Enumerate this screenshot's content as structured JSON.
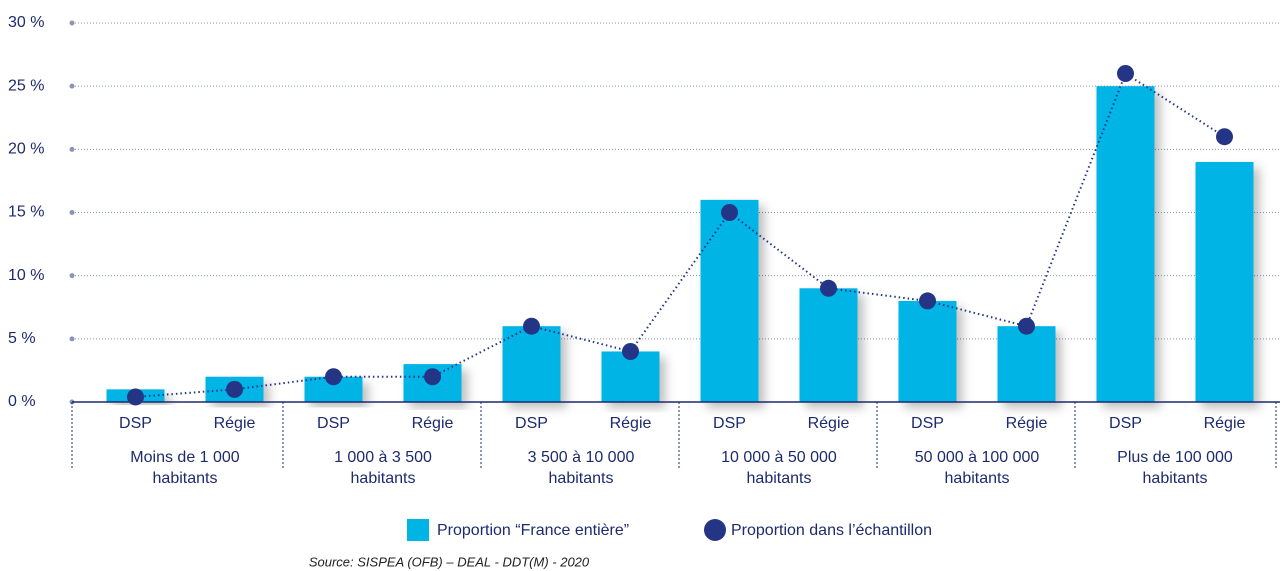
{
  "chart_data": {
    "type": "bar_dot",
    "categories": [
      "DSP",
      "Régie",
      "DSP",
      "Régie",
      "DSP",
      "Régie",
      "DSP",
      "Régie",
      "DSP",
      "Régie",
      "DSP",
      "Régie"
    ],
    "groups": [
      [
        "Moins de 1 000",
        "habitants"
      ],
      [
        "1 000 à 3 500",
        "habitants"
      ],
      [
        "3 500 à 10 000",
        "habitants"
      ],
      [
        "10 000 à 50 000",
        "habitants"
      ],
      [
        "50 000 à 100 000",
        "habitants"
      ],
      [
        "Plus de 100 000",
        "habitants"
      ]
    ],
    "series": [
      {
        "name": "Proportion “France entière”",
        "color": "#00b4e6",
        "values": [
          1,
          2,
          2,
          3,
          6,
          4,
          16,
          9,
          8,
          6,
          25,
          19
        ]
      },
      {
        "name": "Proportion dans l’échantillon",
        "color": "#253586",
        "values": [
          0.4,
          1,
          2,
          2,
          6,
          4,
          15,
          9,
          8,
          6,
          26,
          21
        ]
      }
    ],
    "ylim": [
      0,
      30
    ],
    "yticks": [
      {
        "value": 0,
        "label": "0 %"
      },
      {
        "value": 5,
        "label": "5 %"
      },
      {
        "value": 10,
        "label": "10 %"
      },
      {
        "value": 15,
        "label": "15 %"
      },
      {
        "value": 20,
        "label": "20 %"
      },
      {
        "value": 25,
        "label": "25 %"
      },
      {
        "value": 30,
        "label": "30 %"
      }
    ],
    "grid": true,
    "source": "Source: SISPEA (OFB) – DEAL - DDT(M) - 2020"
  }
}
